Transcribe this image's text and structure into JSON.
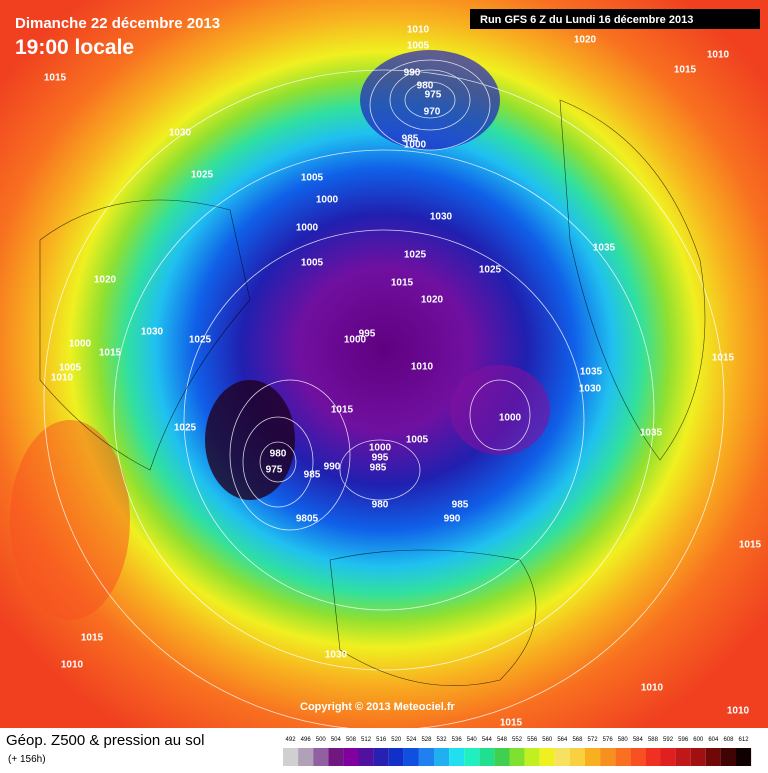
{
  "header": {
    "date": "Dimanche 22 décembre 2013",
    "time": "19:00 locale",
    "run": "Run GFS 6 Z du Lundi 16 décembre 2013"
  },
  "copyright": "Copyright © 2013 Meteociel.fr",
  "footer": {
    "title": "Géop. Z500 & pression au sol",
    "lead": "(+ 156h)"
  },
  "scale": [
    {
      "value": 492,
      "color": "#d0d0d0"
    },
    {
      "value": 496,
      "color": "#b0a0b8"
    },
    {
      "value": 500,
      "color": "#9060a0"
    },
    {
      "value": 504,
      "color": "#701880"
    },
    {
      "value": 508,
      "color": "#8000a0"
    },
    {
      "value": 512,
      "color": "#5010a0"
    },
    {
      "value": 516,
      "color": "#2820b0"
    },
    {
      "value": 520,
      "color": "#1030c8"
    },
    {
      "value": 524,
      "color": "#1050e0"
    },
    {
      "value": 528,
      "color": "#2080f0"
    },
    {
      "value": 532,
      "color": "#20b0f0"
    },
    {
      "value": 536,
      "color": "#20e0f0"
    },
    {
      "value": 540,
      "color": "#20f0c0"
    },
    {
      "value": 544,
      "color": "#20e090"
    },
    {
      "value": 548,
      "color": "#40d050"
    },
    {
      "value": 552,
      "color": "#80e030"
    },
    {
      "value": 556,
      "color": "#c0f020"
    },
    {
      "value": 560,
      "color": "#f0f020"
    },
    {
      "value": 564,
      "color": "#f8e060"
    },
    {
      "value": 568,
      "color": "#f8d040"
    },
    {
      "value": 572,
      "color": "#f8b020"
    },
    {
      "value": 576,
      "color": "#f89020"
    },
    {
      "value": 580,
      "color": "#f87020"
    },
    {
      "value": 584,
      "color": "#f85020"
    },
    {
      "value": 588,
      "color": "#f03020"
    },
    {
      "value": 592,
      "color": "#e02020"
    },
    {
      "value": 596,
      "color": "#c01818"
    },
    {
      "value": 600,
      "color": "#a01010"
    },
    {
      "value": 604,
      "color": "#700808"
    },
    {
      "value": 608,
      "color": "#400404"
    },
    {
      "value": 612,
      "color": "#100000"
    }
  ],
  "isobars": [
    "1010",
    "1005",
    "1020",
    "1015",
    "1010",
    "1015",
    "1030",
    "1025",
    "990",
    "980",
    "975",
    "970",
    "985",
    "1000",
    "1005",
    "1000",
    "1000",
    "1005",
    "1030",
    "1025",
    "1025",
    "1035",
    "1020",
    "1015",
    "1020",
    "1030",
    "1025",
    "995",
    "1000",
    "1000",
    "1015",
    "1005",
    "1010",
    "1010",
    "1035",
    "1030",
    "1015",
    "1000",
    "1025",
    "1035",
    "1005",
    "980",
    "995",
    "1000",
    "985",
    "990",
    "985",
    "975",
    "980",
    "985",
    "990",
    "9805",
    "1015",
    "1015",
    "1015",
    "1010",
    "1030",
    "1010",
    "1010",
    "1015"
  ]
}
